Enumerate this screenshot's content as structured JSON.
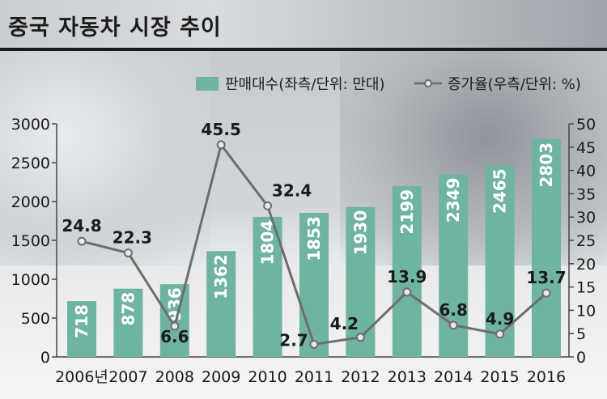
{
  "title": "중국 자동차 시장 추이",
  "legend": {
    "bar_label": "판매대수(좌측/단위: 만대)",
    "line_label": "증가율(우측/단위: %)"
  },
  "colors": {
    "bar": "#6fb3a3",
    "line": "#6d6d6d",
    "marker_fill": "#e9e9e9",
    "text": "#1b1b1b"
  },
  "chart_data": {
    "type": "bar",
    "title": "중국 자동차 시장 추이",
    "categories": [
      "2006년",
      "2007",
      "2008",
      "2009",
      "2010",
      "2011",
      "2012",
      "2013",
      "2014",
      "2015",
      "2016"
    ],
    "series": [
      {
        "name": "판매대수(좌측/단위: 만대)",
        "type": "bar",
        "axis": "left",
        "values": [
          718,
          878,
          936,
          1362,
          1804,
          1853,
          1930,
          2199,
          2349,
          2465,
          2803
        ]
      },
      {
        "name": "증가율(우측/단위: %)",
        "type": "line",
        "axis": "right",
        "values": [
          24.8,
          22.3,
          6.6,
          45.5,
          32.4,
          2.7,
          4.2,
          13.9,
          6.8,
          4.9,
          13.7
        ]
      }
    ],
    "left_axis": {
      "ylim": [
        0,
        3000
      ],
      "ticks": [
        "0",
        "500",
        "1000",
        "1500",
        "2000",
        "2500",
        "3000"
      ]
    },
    "right_axis": {
      "ylim": [
        0,
        50
      ],
      "ticks": [
        "0",
        "5",
        "10",
        "15",
        "20",
        "25",
        "30",
        "35",
        "40",
        "45",
        "50"
      ]
    },
    "grid": false,
    "legend_position": "top-right"
  }
}
